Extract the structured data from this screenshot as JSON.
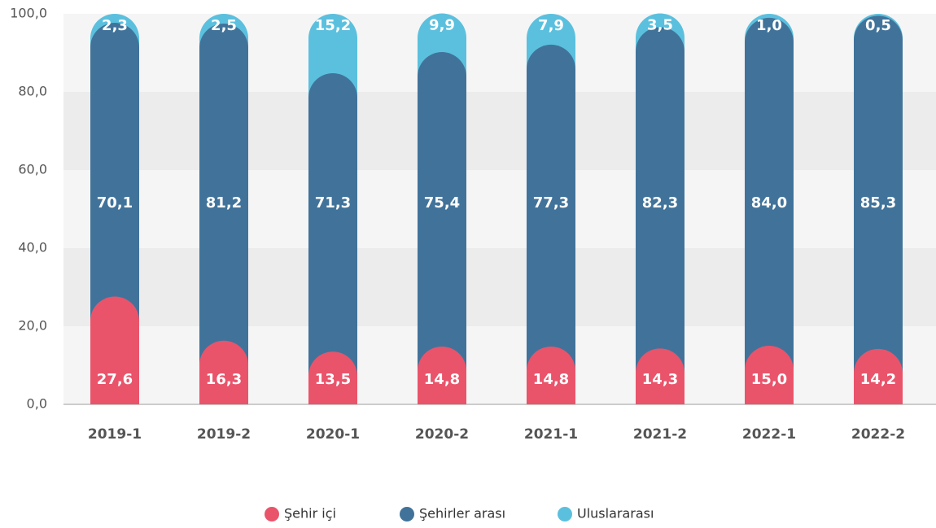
{
  "chart_data": {
    "type": "stacked_bar",
    "categories": [
      "2019-1",
      "2019-2",
      "2020-1",
      "2020-2",
      "2021-1",
      "2021-2",
      "2022-1",
      "2022-2"
    ],
    "series": [
      {
        "name": "Şehir içi",
        "color": "#e9546b",
        "values": [
          27.6,
          16.3,
          13.5,
          14.8,
          14.8,
          14.3,
          15.0,
          14.2
        ],
        "value_labels": [
          "27,6",
          "16,3",
          "13,5",
          "14,8",
          "14,8",
          "14,3",
          "15,0",
          "14,2"
        ]
      },
      {
        "name": "Şehirler arası",
        "color": "#41739a",
        "values": [
          70.1,
          81.2,
          71.3,
          75.4,
          77.3,
          82.3,
          84.0,
          85.3
        ],
        "value_labels": [
          "70,1",
          "81,2",
          "71,3",
          "75,4",
          "77,3",
          "82,3",
          "84,0",
          "85,3"
        ]
      },
      {
        "name": "Uluslararası",
        "color": "#5bc0de",
        "values": [
          2.3,
          2.5,
          15.2,
          9.9,
          7.9,
          3.5,
          1.0,
          0.5
        ],
        "value_labels": [
          "2,3",
          "2,5",
          "15,2",
          "9,9",
          "7,9",
          "3,5",
          "1,0",
          "0,5"
        ]
      }
    ],
    "ylim": [
      0,
      100
    ],
    "yticks": [
      {
        "value": 0,
        "label": "0,0"
      },
      {
        "value": 20,
        "label": "20,0"
      },
      {
        "value": 40,
        "label": "40,0"
      },
      {
        "value": 60,
        "label": "60,0"
      },
      {
        "value": 80,
        "label": "80,0"
      },
      {
        "value": 100,
        "label": "100,0"
      }
    ],
    "grid": true
  }
}
